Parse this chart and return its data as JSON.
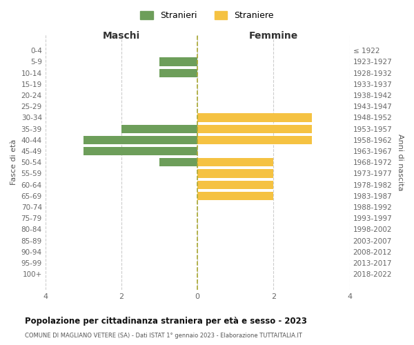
{
  "age_groups": [
    "0-4",
    "5-9",
    "10-14",
    "15-19",
    "20-24",
    "25-29",
    "30-34",
    "35-39",
    "40-44",
    "45-49",
    "50-54",
    "55-59",
    "60-64",
    "65-69",
    "70-74",
    "75-79",
    "80-84",
    "85-89",
    "90-94",
    "95-99",
    "100+"
  ],
  "birth_years": [
    "2018-2022",
    "2013-2017",
    "2008-2012",
    "2003-2007",
    "1998-2002",
    "1993-1997",
    "1988-1992",
    "1983-1987",
    "1978-1982",
    "1973-1977",
    "1968-1972",
    "1963-1967",
    "1958-1962",
    "1953-1957",
    "1948-1952",
    "1943-1947",
    "1938-1942",
    "1933-1937",
    "1928-1932",
    "1923-1927",
    "≤ 1922"
  ],
  "males": [
    0,
    1,
    1,
    0,
    0,
    0,
    0,
    2,
    3,
    3,
    1,
    0,
    0,
    0,
    0,
    0,
    0,
    0,
    0,
    0,
    0
  ],
  "females": [
    0,
    0,
    0,
    0,
    0,
    0,
    3,
    3,
    3,
    0,
    2,
    2,
    2,
    2,
    0,
    0,
    0,
    0,
    0,
    0,
    0
  ],
  "male_color": "#6d9e5a",
  "female_color": "#f5c242",
  "title": "Popolazione per cittadinanza straniera per età e sesso - 2023",
  "subtitle": "COMUNE DI MAGLIANO VETERE (SA) - Dati ISTAT 1° gennaio 2023 - Elaborazione TUTTAITALIA.IT",
  "xlabel_left": "Maschi",
  "xlabel_right": "Femmine",
  "ylabel_left": "Fasce di età",
  "ylabel_right": "Anni di nascita",
  "legend_male": "Stranieri",
  "legend_female": "Straniere",
  "xlim": 4,
  "background_color": "#ffffff",
  "grid_color": "#cccccc",
  "bar_height": 0.75
}
